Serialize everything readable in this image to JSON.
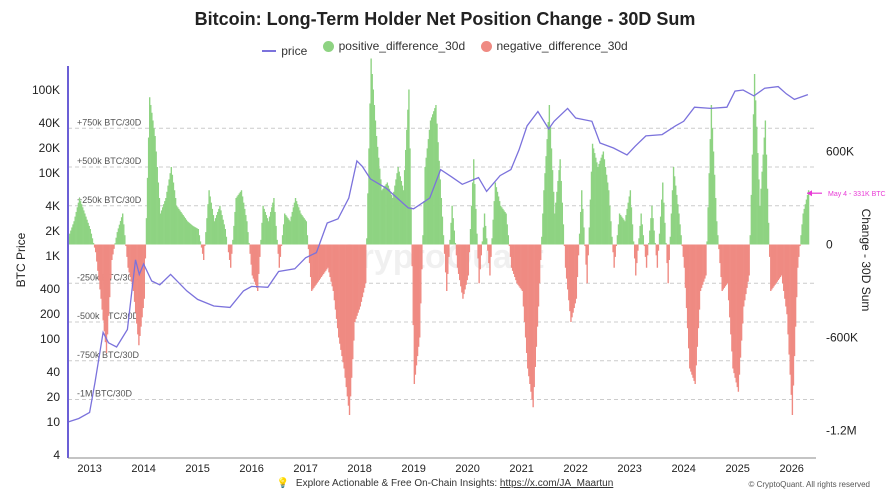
{
  "title": "Bitcoin: Long-Term Holder Net Position Change - 30D Sum",
  "legend": {
    "price": "price",
    "positive": "positive_difference_30d",
    "negative": "negative_difference_30d"
  },
  "colors": {
    "price": "#7b72dc",
    "positive": "#8ed382",
    "negative": "#ef8a82",
    "annotation": "#e83ad6",
    "axis_left": "#6b5fd6",
    "grid": "#cccccc"
  },
  "footer": {
    "text": "Explore Actionable & Free On-Chain Insights:",
    "link": "https://x.com/JA_Maartun",
    "copyright": "© CryptoQuant. All rights reserved"
  },
  "watermark": "CryptoQuant",
  "chart_data": {
    "type": "area",
    "x_axis": {
      "ticks": [
        "2013",
        "2014",
        "2015",
        "2016",
        "2017",
        "2018",
        "2019",
        "2020",
        "2021",
        "2022",
        "2023",
        "2024",
        "2025",
        "2026"
      ]
    },
    "y_left": {
      "label": "BTC Price",
      "scale": "log",
      "ticks": [
        "4",
        "10",
        "20",
        "40",
        "100",
        "200",
        "400",
        "1K",
        "2K",
        "4K",
        "10K",
        "20K",
        "40K",
        "100K"
      ],
      "tick_values": [
        4,
        10,
        20,
        40,
        100,
        200,
        400,
        1000,
        2000,
        4000,
        10000,
        20000,
        40000,
        100000
      ]
    },
    "y_right": {
      "label": "Change - 30D Sum",
      "ticks": [
        "600K",
        "0",
        "-600K",
        "-1.2M"
      ],
      "tick_values": [
        600000,
        0,
        -600000,
        -1200000
      ]
    },
    "reference_lines": [
      {
        "label": "+750k BTC/30D",
        "value": 750000
      },
      {
        "label": "+500k BTC/30D",
        "value": 500000
      },
      {
        "label": "+250k BTC/30D",
        "value": 250000
      },
      {
        "label": "-250k BTC/30D",
        "value": -250000
      },
      {
        "label": "-500k BTC/30D",
        "value": -500000
      },
      {
        "label": "-750k BTC/30D",
        "value": -750000
      },
      {
        "label": "-1M BTC/30D",
        "value": -1000000
      }
    ],
    "annotation": {
      "label": "May 4 - 331K BTC",
      "value": 331000
    },
    "price": {
      "t": [
        2012.6,
        2012.8,
        2013.0,
        2013.1,
        2013.25,
        2013.35,
        2013.5,
        2013.7,
        2013.85,
        2013.92,
        2014.0,
        2014.15,
        2014.3,
        2014.5,
        2014.8,
        2015.0,
        2015.3,
        2015.6,
        2015.85,
        2016.0,
        2016.3,
        2016.5,
        2016.8,
        2017.0,
        2017.2,
        2017.4,
        2017.6,
        2017.8,
        2017.95,
        2018.05,
        2018.2,
        2018.5,
        2018.9,
        2019.0,
        2019.3,
        2019.5,
        2019.7,
        2019.9,
        2020.2,
        2020.35,
        2020.6,
        2020.8,
        2020.95,
        2021.1,
        2021.3,
        2021.5,
        2021.6,
        2021.85,
        2022.0,
        2022.3,
        2022.45,
        2022.7,
        2022.95,
        2023.1,
        2023.3,
        2023.6,
        2023.85,
        2024.0,
        2024.2,
        2024.5,
        2024.8,
        2024.95,
        2025.1,
        2025.3,
        2025.5,
        2025.75,
        2025.9,
        2026.05,
        2026.3
      ],
      "v": [
        10,
        11,
        13,
        30,
        120,
        90,
        80,
        130,
        900,
        600,
        800,
        500,
        450,
        600,
        380,
        300,
        250,
        240,
        380,
        430,
        420,
        650,
        700,
        950,
        1100,
        2500,
        2800,
        5000,
        14000,
        12000,
        8500,
        6500,
        3800,
        3700,
        5000,
        11000,
        9000,
        7300,
        8800,
        6000,
        9300,
        11000,
        19000,
        37000,
        55000,
        34000,
        42000,
        60000,
        46000,
        42000,
        23000,
        20000,
        16500,
        21000,
        28000,
        29000,
        37000,
        42000,
        62000,
        60000,
        62000,
        97000,
        100000,
        85000,
        105000,
        110000,
        90000,
        77000,
        88000
      ]
    },
    "net_position_change": {
      "t": [
        2012.6,
        2012.7,
        2012.8,
        2012.9,
        2013.0,
        2013.1,
        2013.2,
        2013.3,
        2013.4,
        2013.5,
        2013.6,
        2013.7,
        2013.8,
        2013.9,
        2014.0,
        2014.1,
        2014.2,
        2014.3,
        2014.4,
        2014.5,
        2014.6,
        2014.7,
        2014.8,
        2014.9,
        2015.0,
        2015.1,
        2015.2,
        2015.3,
        2015.4,
        2015.5,
        2015.6,
        2015.7,
        2015.8,
        2015.9,
        2016.0,
        2016.1,
        2016.2,
        2016.3,
        2016.4,
        2016.5,
        2016.6,
        2016.7,
        2016.8,
        2016.9,
        2017.0,
        2017.1,
        2017.2,
        2017.3,
        2017.4,
        2017.5,
        2017.6,
        2017.7,
        2017.8,
        2017.9,
        2018.0,
        2018.1,
        2018.2,
        2018.3,
        2018.4,
        2018.5,
        2018.6,
        2018.7,
        2018.8,
        2018.9,
        2019.0,
        2019.1,
        2019.2,
        2019.3,
        2019.4,
        2019.5,
        2019.6,
        2019.7,
        2019.8,
        2019.9,
        2020.0,
        2020.1,
        2020.2,
        2020.3,
        2020.4,
        2020.5,
        2020.6,
        2020.7,
        2020.8,
        2020.9,
        2021.0,
        2021.1,
        2021.2,
        2021.3,
        2021.4,
        2021.5,
        2021.6,
        2021.7,
        2021.8,
        2021.9,
        2022.0,
        2022.1,
        2022.2,
        2022.3,
        2022.4,
        2022.5,
        2022.6,
        2022.7,
        2022.8,
        2022.9,
        2023.0,
        2023.1,
        2023.2,
        2023.3,
        2023.4,
        2023.5,
        2023.6,
        2023.7,
        2023.8,
        2023.9,
        2024.0,
        2024.1,
        2024.2,
        2024.3,
        2024.4,
        2024.5,
        2024.6,
        2024.7,
        2024.8,
        2024.9,
        2025.0,
        2025.1,
        2025.2,
        2025.3,
        2025.4,
        2025.5,
        2025.6,
        2025.7,
        2025.8,
        2025.9,
        2026.0,
        2026.1,
        2026.2,
        2026.3
      ],
      "v": [
        50000,
        150000,
        300000,
        200000,
        100000,
        -50000,
        -350000,
        -700000,
        -100000,
        80000,
        200000,
        -150000,
        -300000,
        -650000,
        -350000,
        950000,
        700000,
        200000,
        300000,
        500000,
        250000,
        200000,
        150000,
        120000,
        100000,
        -100000,
        350000,
        150000,
        250000,
        100000,
        -150000,
        300000,
        350000,
        150000,
        -200000,
        -300000,
        250000,
        150000,
        300000,
        -150000,
        200000,
        150000,
        300000,
        200000,
        150000,
        -300000,
        -250000,
        -200000,
        -150000,
        -300000,
        -600000,
        -800000,
        -1100000,
        -500000,
        -400000,
        -250000,
        1200000,
        700000,
        350000,
        400000,
        300000,
        500000,
        350000,
        1000000,
        -900000,
        -600000,
        500000,
        800000,
        900000,
        300000,
        -300000,
        250000,
        -150000,
        -350000,
        -200000,
        550000,
        -250000,
        200000,
        -200000,
        400000,
        250000,
        200000,
        -150000,
        -250000,
        -300000,
        -800000,
        -1050000,
        -400000,
        350000,
        900000,
        200000,
        550000,
        -150000,
        -500000,
        -350000,
        350000,
        -250000,
        650000,
        500000,
        600000,
        350000,
        -150000,
        200000,
        150000,
        350000,
        -200000,
        200000,
        -150000,
        250000,
        -150000,
        400000,
        -250000,
        500000,
        200000,
        -150000,
        -800000,
        -900000,
        -300000,
        -200000,
        900000,
        150000,
        -300000,
        -250000,
        -800000,
        -950000,
        -400000,
        -200000,
        1100000,
        250000,
        800000,
        -300000,
        -250000,
        -200000,
        -450000,
        -1100000,
        -150000,
        200000,
        350000,
        331000
      ]
    }
  }
}
